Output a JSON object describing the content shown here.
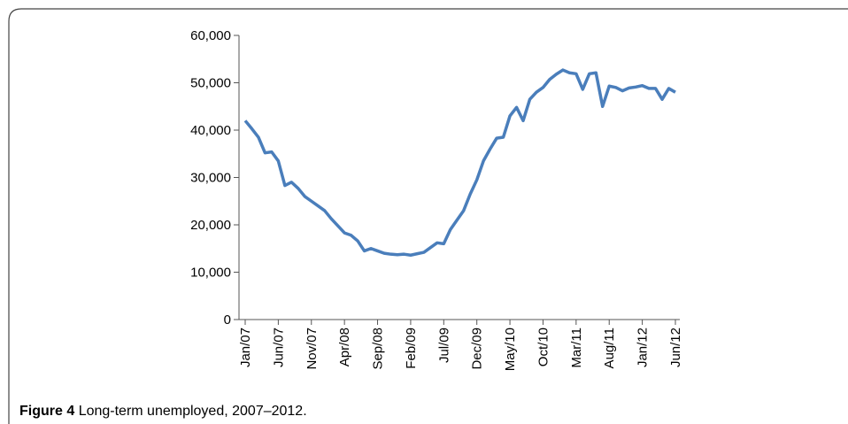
{
  "chart_data": {
    "type": "line",
    "caption_label": "Figure 4",
    "caption": "Long-term unemployed, 2007–2012.",
    "categories": [
      "Jan/07",
      null,
      null,
      null,
      null,
      "Jun/07",
      null,
      null,
      null,
      null,
      "Nov/07",
      null,
      null,
      null,
      null,
      "Apr/08",
      null,
      null,
      null,
      null,
      "Sep/08",
      null,
      null,
      null,
      null,
      "Feb/09",
      null,
      null,
      null,
      null,
      "Jul/09",
      null,
      null,
      null,
      null,
      "Dec/09",
      null,
      null,
      null,
      null,
      "May/10",
      null,
      null,
      null,
      null,
      "Oct/10",
      null,
      null,
      null,
      null,
      "Mar/11",
      null,
      null,
      null,
      null,
      "Aug/11",
      null,
      null,
      null,
      null,
      "Jan/12",
      null,
      null,
      null,
      null,
      "Jun/12"
    ],
    "values": [
      42000,
      40300,
      38500,
      35200,
      35400,
      33500,
      28300,
      29000,
      27700,
      26000,
      25000,
      24000,
      23000,
      21300,
      19800,
      18300,
      17800,
      16600,
      14500,
      15000,
      14500,
      14000,
      13800,
      13700,
      13800,
      13600,
      13900,
      14200,
      15200,
      16200,
      16000,
      19000,
      21000,
      23000,
      26500,
      29500,
      33500,
      36000,
      38300,
      38500,
      43000,
      44800,
      42000,
      46500,
      48000,
      49000,
      50700,
      51800,
      52700,
      52100,
      51900,
      48600,
      51900,
      52100,
      45000,
      49300,
      49000,
      48300,
      48900,
      49100,
      49400,
      48800,
      48800,
      46500,
      48800,
      48000
    ],
    "color": "#4a7ebb",
    "ylim": [
      0,
      60000
    ],
    "yticks": [
      0,
      {
        "value": 10000,
        "label": "10,000"
      },
      {
        "value": 20000,
        "label": "20,000"
      },
      {
        "value": 30000,
        "label": "30,000"
      },
      {
        "value": 40000,
        "label": "40,000"
      },
      {
        "value": 50000,
        "label": "50,000"
      },
      {
        "value": 60000,
        "label": "60,000"
      }
    ],
    "grid": false
  }
}
